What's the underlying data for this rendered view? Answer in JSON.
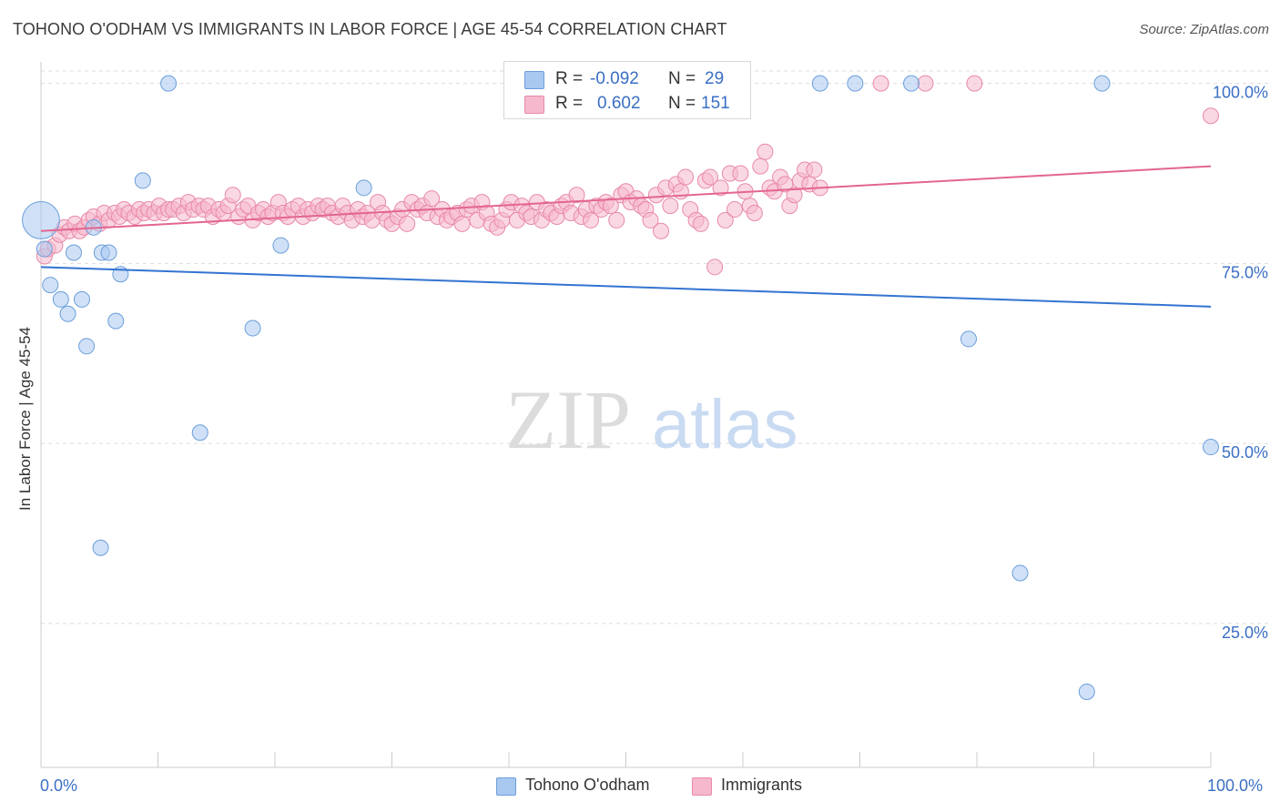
{
  "title": "TOHONO O'ODHAM VS IMMIGRANTS IN LABOR FORCE | AGE 45-54 CORRELATION CHART",
  "source": "Source: ZipAtlas.com",
  "watermark": {
    "zip": "ZIP",
    "atlas": "atlas"
  },
  "legend": {
    "r_label": "R =",
    "n_label": "N =",
    "rows": [
      {
        "swatch_color": "#a9c8f0",
        "r": "-0.092",
        "n": "29"
      },
      {
        "swatch_color": "#f6b8cc",
        "r": "0.602",
        "n": "151"
      }
    ]
  },
  "bottom_legend": [
    {
      "label": "Tohono O'odham",
      "color": "#a9c8f0"
    },
    {
      "label": "Immigrants",
      "color": "#f6b8cc"
    }
  ],
  "chart_data": {
    "type": "scatter",
    "title": "TOHONO O'ODHAM VS IMMIGRANTS IN LABOR FORCE | AGE 45-54 CORRELATION CHART",
    "xlabel": "",
    "ylabel": "In Labor Force | Age 45-54",
    "x_tick_labels": [
      "0.0%",
      "100.0%"
    ],
    "y_tick_labels": [
      "100.0%",
      "75.0%",
      "50.0%",
      "25.0%"
    ],
    "y_ticks": [
      100,
      75,
      50,
      25
    ],
    "xlim": [
      0,
      100
    ],
    "ylim": [
      5,
      104
    ],
    "grid": true,
    "series": [
      {
        "name": "Tohono O'odham",
        "color": "#a9c8f0",
        "stroke": "#6b9edb",
        "line_color": "#3374d1",
        "trend": [
          [
            0,
            74.5
          ],
          [
            100,
            69.0
          ]
        ],
        "points": [
          [
            0.0,
            81.0,
            2.4
          ],
          [
            0.3,
            77.0,
            1
          ],
          [
            0.8,
            72.0,
            1
          ],
          [
            1.7,
            70.0,
            1
          ],
          [
            2.3,
            68.0,
            1
          ],
          [
            2.8,
            76.5,
            1
          ],
          [
            3.5,
            70.0,
            1
          ],
          [
            3.9,
            63.5,
            1
          ],
          [
            4.5,
            80.0,
            1
          ],
          [
            5.1,
            35.5,
            1
          ],
          [
            5.2,
            76.5,
            1
          ],
          [
            5.8,
            76.5,
            1
          ],
          [
            6.4,
            67.0,
            1
          ],
          [
            6.8,
            73.5,
            1
          ],
          [
            8.7,
            86.5,
            1
          ],
          [
            10.9,
            100.0,
            1
          ],
          [
            13.6,
            51.5,
            1
          ],
          [
            18.1,
            66.0,
            1
          ],
          [
            20.5,
            77.5,
            1
          ],
          [
            27.6,
            85.5,
            1
          ],
          [
            47.8,
            100.0,
            1
          ],
          [
            66.6,
            100.0,
            1
          ],
          [
            69.6,
            100.0,
            1
          ],
          [
            74.4,
            100.0,
            1
          ],
          [
            79.3,
            64.5,
            1
          ],
          [
            83.7,
            32.0,
            1
          ],
          [
            89.4,
            15.5,
            1
          ],
          [
            90.7,
            100.0,
            1
          ],
          [
            100.0,
            49.5,
            1
          ]
        ]
      },
      {
        "name": "Immigrants",
        "color": "#f6b8cc",
        "stroke": "#e889a8",
        "line_color": "#e36590",
        "trend": [
          [
            0,
            79.5
          ],
          [
            100,
            88.5
          ]
        ],
        "points": [
          [
            0.3,
            76.0
          ],
          [
            0.6,
            77.0
          ],
          [
            1.2,
            77.5
          ],
          [
            1.6,
            79.0
          ],
          [
            2.0,
            80.0
          ],
          [
            2.4,
            79.5
          ],
          [
            2.9,
            80.5
          ],
          [
            3.3,
            79.5
          ],
          [
            3.7,
            80.0
          ],
          [
            4.1,
            81.0
          ],
          [
            4.5,
            81.5
          ],
          [
            5.0,
            80.5
          ],
          [
            5.4,
            82.0
          ],
          [
            5.8,
            81.0
          ],
          [
            6.3,
            82.0
          ],
          [
            6.7,
            81.5
          ],
          [
            7.1,
            82.5
          ],
          [
            7.5,
            82.0
          ],
          [
            8.0,
            81.5
          ],
          [
            8.4,
            82.5
          ],
          [
            8.8,
            82.0
          ],
          [
            9.2,
            82.5
          ],
          [
            9.7,
            82.0
          ],
          [
            10.1,
            83.0
          ],
          [
            10.5,
            82.0
          ],
          [
            10.9,
            82.5
          ],
          [
            11.3,
            82.5
          ],
          [
            11.8,
            83.0
          ],
          [
            12.2,
            82.0
          ],
          [
            12.6,
            83.5
          ],
          [
            13.0,
            82.5
          ],
          [
            13.5,
            83.0
          ],
          [
            13.9,
            82.5
          ],
          [
            14.3,
            83.0
          ],
          [
            14.7,
            81.5
          ],
          [
            15.2,
            82.5
          ],
          [
            15.6,
            82.0
          ],
          [
            16.0,
            83.0
          ],
          [
            16.4,
            84.5
          ],
          [
            16.9,
            81.5
          ],
          [
            17.3,
            82.5
          ],
          [
            17.7,
            83.0
          ],
          [
            18.1,
            81.0
          ],
          [
            18.6,
            82.0
          ],
          [
            19.0,
            82.5
          ],
          [
            19.4,
            81.5
          ],
          [
            19.8,
            82.0
          ],
          [
            20.3,
            83.5
          ],
          [
            20.7,
            82.0
          ],
          [
            21.1,
            81.5
          ],
          [
            21.5,
            82.5
          ],
          [
            22.0,
            83.0
          ],
          [
            22.4,
            81.5
          ],
          [
            22.8,
            82.5
          ],
          [
            23.2,
            82.0
          ],
          [
            23.7,
            83.0
          ],
          [
            24.1,
            82.5
          ],
          [
            24.5,
            83.0
          ],
          [
            24.9,
            82.0
          ],
          [
            25.4,
            81.5
          ],
          [
            25.8,
            83.0
          ],
          [
            26.2,
            82.0
          ],
          [
            26.6,
            81.0
          ],
          [
            27.1,
            82.5
          ],
          [
            27.5,
            81.5
          ],
          [
            27.9,
            82.0
          ],
          [
            28.3,
            81.0
          ],
          [
            28.8,
            83.5
          ],
          [
            29.2,
            82.0
          ],
          [
            29.6,
            81.0
          ],
          [
            30.0,
            80.5
          ],
          [
            30.5,
            81.5
          ],
          [
            30.9,
            82.5
          ],
          [
            31.3,
            80.5
          ],
          [
            31.7,
            83.5
          ],
          [
            32.2,
            82.5
          ],
          [
            32.6,
            83.0
          ],
          [
            33.0,
            82.0
          ],
          [
            33.4,
            84.0
          ],
          [
            33.9,
            81.5
          ],
          [
            34.3,
            82.5
          ],
          [
            34.7,
            81.0
          ],
          [
            35.1,
            81.5
          ],
          [
            35.6,
            82.0
          ],
          [
            36.0,
            80.5
          ],
          [
            36.4,
            82.5
          ],
          [
            36.8,
            83.0
          ],
          [
            37.3,
            81.0
          ],
          [
            37.7,
            83.5
          ],
          [
            38.1,
            82.0
          ],
          [
            38.5,
            80.5
          ],
          [
            39.0,
            80.0
          ],
          [
            39.4,
            81.0
          ],
          [
            39.8,
            82.5
          ],
          [
            40.2,
            83.5
          ],
          [
            40.7,
            81.0
          ],
          [
            41.1,
            83.0
          ],
          [
            41.5,
            82.0
          ],
          [
            41.9,
            81.5
          ],
          [
            42.4,
            83.5
          ],
          [
            42.8,
            81.0
          ],
          [
            43.2,
            82.5
          ],
          [
            43.6,
            82.0
          ],
          [
            44.1,
            81.5
          ],
          [
            44.5,
            83.0
          ],
          [
            44.9,
            83.5
          ],
          [
            45.3,
            82.0
          ],
          [
            45.8,
            84.5
          ],
          [
            46.2,
            81.5
          ],
          [
            46.6,
            82.5
          ],
          [
            47.0,
            81.0
          ],
          [
            47.5,
            83.0
          ],
          [
            47.9,
            82.5
          ],
          [
            48.3,
            83.5
          ],
          [
            48.7,
            83.0
          ],
          [
            49.2,
            81.0
          ],
          [
            49.6,
            84.5
          ],
          [
            50.0,
            85.0
          ],
          [
            50.4,
            83.5
          ],
          [
            50.9,
            84.0
          ],
          [
            51.3,
            83.0
          ],
          [
            51.7,
            82.5
          ],
          [
            52.1,
            81.0
          ],
          [
            52.6,
            84.5
          ],
          [
            53.0,
            79.5
          ],
          [
            53.4,
            85.5
          ],
          [
            53.8,
            83.0
          ],
          [
            54.3,
            86.0
          ],
          [
            54.7,
            85.0
          ],
          [
            55.1,
            87.0
          ],
          [
            55.5,
            82.5
          ],
          [
            56.0,
            81.0
          ],
          [
            56.4,
            80.5
          ],
          [
            56.8,
            86.5
          ],
          [
            57.2,
            87.0
          ],
          [
            57.6,
            74.5
          ],
          [
            58.1,
            85.5
          ],
          [
            58.5,
            81.0
          ],
          [
            58.9,
            87.5
          ],
          [
            59.3,
            82.5
          ],
          [
            59.8,
            87.5
          ],
          [
            60.2,
            85.0
          ],
          [
            60.6,
            83.0
          ],
          [
            61.0,
            82.0
          ],
          [
            61.5,
            88.5
          ],
          [
            61.9,
            90.5
          ],
          [
            62.3,
            85.5
          ],
          [
            62.7,
            85.0
          ],
          [
            63.2,
            87.0
          ],
          [
            63.6,
            86.0
          ],
          [
            64.0,
            83.0
          ],
          [
            64.4,
            84.5
          ],
          [
            64.9,
            86.5
          ],
          [
            65.3,
            88.0
          ],
          [
            65.7,
            86.0
          ],
          [
            66.1,
            88.0
          ],
          [
            66.6,
            85.5
          ],
          [
            71.8,
            100.0
          ],
          [
            75.6,
            100.0
          ],
          [
            79.8,
            100.0
          ],
          [
            100.0,
            95.5
          ]
        ]
      }
    ]
  }
}
